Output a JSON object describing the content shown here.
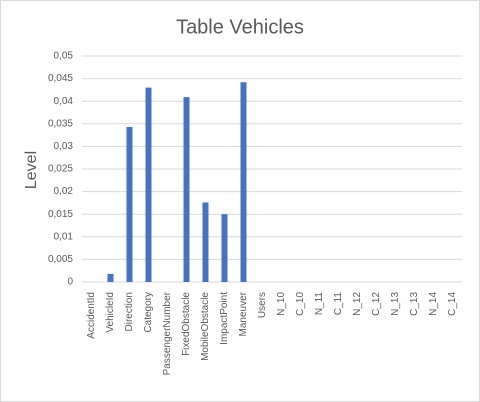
{
  "chart_data": {
    "type": "bar",
    "title": "Table Vehicles",
    "y_label": "Level",
    "categories": [
      "AccidentId",
      "VehicleId",
      "Direction",
      "Category",
      "PassengerNumber",
      "FixedObstacle",
      "MobileObstacle",
      "ImpactPoint",
      "Maneuver",
      "Users",
      "N_10",
      "C_10",
      "N_11",
      "C_11",
      "N_12",
      "C_12",
      "N_13",
      "C_13",
      "N_14",
      "C_14"
    ],
    "values": [
      0,
      0.0018,
      0.0343,
      0.043,
      0,
      0.0409,
      0.0176,
      0.015,
      0.0442,
      0,
      0,
      0,
      0,
      0,
      0,
      0,
      0,
      0,
      0,
      0
    ],
    "color": "#4472c4",
    "ylim": [
      0,
      0.05
    ],
    "yticks": [
      0,
      {
        "value": 0.005,
        "label": "0,005"
      },
      {
        "value": 0.01,
        "label": "0,01"
      },
      {
        "value": 0.015,
        "label": "0,015"
      },
      {
        "value": 0.02,
        "label": "0,02"
      },
      {
        "value": 0.025,
        "label": "0,025"
      },
      {
        "value": 0.03,
        "label": "0,03"
      },
      {
        "value": 0.035,
        "label": "0,035"
      },
      {
        "value": 0.04,
        "label": "0,04"
      },
      {
        "value": 0.045,
        "label": "0,045"
      },
      {
        "value": 0.05,
        "label": "0,05"
      }
    ],
    "grid": true
  }
}
